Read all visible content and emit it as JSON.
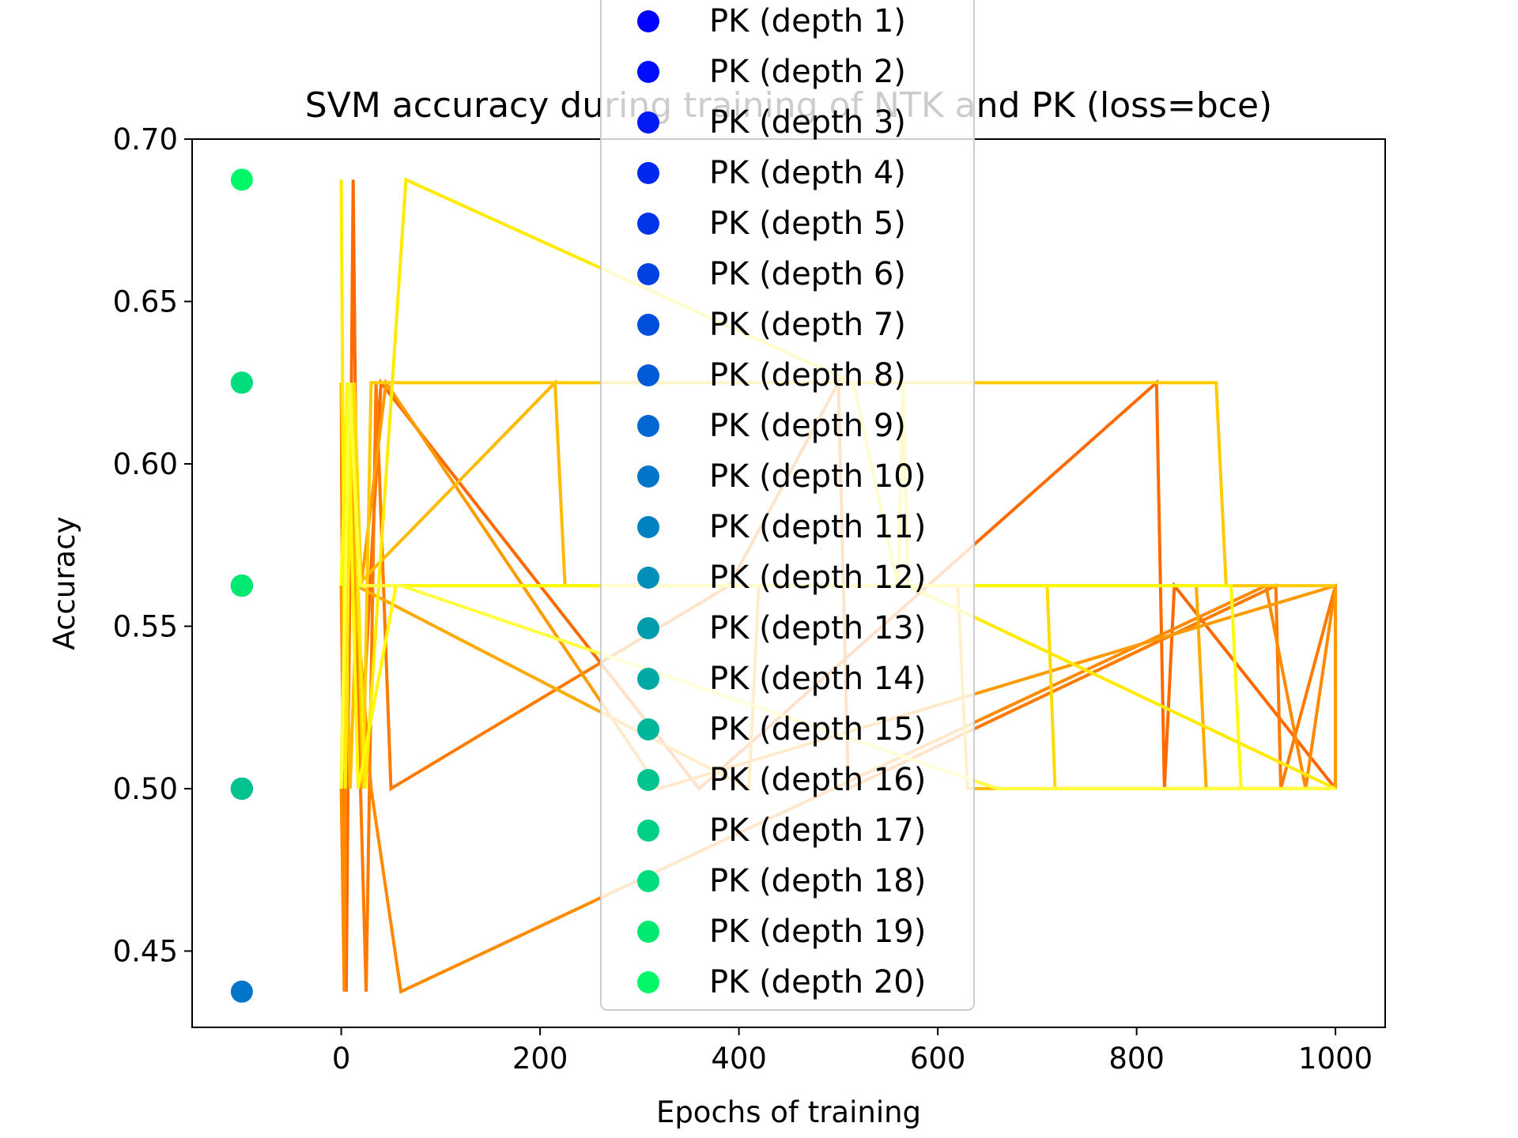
{
  "chart_data": {
    "type": "line",
    "title": "SVM accuracy during training of NTK and PK (loss=bce)",
    "xlabel": "Epochs of training",
    "ylabel": "Accuracy",
    "xlim": [
      -150,
      1050
    ],
    "ylim": [
      0.4265,
      0.7
    ],
    "xticks": [
      0,
      200,
      400,
      600,
      800,
      1000
    ],
    "xtick_labels": [
      "0",
      "200",
      "400",
      "600",
      "800",
      "1000"
    ],
    "yticks": [
      0.45,
      0.5,
      0.55,
      0.6,
      0.65,
      0.7
    ],
    "ytick_labels": [
      "0.45",
      "0.50",
      "0.55",
      "0.60",
      "0.65",
      "0.70"
    ],
    "grid": false,
    "legend": {
      "position": "top-center"
    },
    "pk_points": [
      {
        "name": "PK (depth 1)",
        "x": -100,
        "y": 0.5625,
        "color": "#0000ff"
      },
      {
        "name": "PK (depth 2)",
        "x": -100,
        "y": 0.5,
        "color": "#000dfa"
      },
      {
        "name": "PK (depth 3)",
        "x": -100,
        "y": 0.5625,
        "color": "#001af4"
      },
      {
        "name": "PK (depth 4)",
        "x": -100,
        "y": 0.5,
        "color": "#0027ee"
      },
      {
        "name": "PK (depth 5)",
        "x": -100,
        "y": 0.5625,
        "color": "#0034e8"
      },
      {
        "name": "PK (depth 6)",
        "x": -100,
        "y": 0.5,
        "color": "#0041e2"
      },
      {
        "name": "PK (depth 7)",
        "x": -100,
        "y": 0.5625,
        "color": "#004edc"
      },
      {
        "name": "PK (depth 8)",
        "x": -100,
        "y": 0.5,
        "color": "#005bd6"
      },
      {
        "name": "PK (depth 9)",
        "x": -100,
        "y": 0.5625,
        "color": "#0068d0"
      },
      {
        "name": "PK (depth 10)",
        "x": -100,
        "y": 0.4375,
        "color": "#0075ca"
      },
      {
        "name": "PK (depth 11)",
        "x": -100,
        "y": 0.5,
        "color": "#0082c2"
      },
      {
        "name": "PK (depth 12)",
        "x": -100,
        "y": 0.5625,
        "color": "#008fb8"
      },
      {
        "name": "PK (depth 13)",
        "x": -100,
        "y": 0.5,
        "color": "#009cae"
      },
      {
        "name": "PK (depth 14)",
        "x": -100,
        "y": 0.5625,
        "color": "#00a9a4"
      },
      {
        "name": "PK (depth 15)",
        "x": -100,
        "y": 0.625,
        "color": "#00b69a"
      },
      {
        "name": "PK (depth 16)",
        "x": -100,
        "y": 0.5,
        "color": "#00c390"
      },
      {
        "name": "PK (depth 17)",
        "x": -100,
        "y": 0.5625,
        "color": "#00d086"
      },
      {
        "name": "PK (depth 18)",
        "x": -100,
        "y": 0.625,
        "color": "#00dd7c"
      },
      {
        "name": "PK (depth 19)",
        "x": -100,
        "y": 0.5625,
        "color": "#00ea72"
      },
      {
        "name": "PK (depth 20)",
        "x": -100,
        "y": 0.6875,
        "color": "#00f768"
      }
    ],
    "ntk_lines": [
      {
        "color": "#ff6a00",
        "points": [
          [
            0,
            0.5625
          ],
          [
            5,
            0.4375
          ],
          [
            12,
            0.6875
          ],
          [
            18,
            0.5
          ],
          [
            40,
            0.625
          ],
          [
            360,
            0.5
          ],
          [
            820,
            0.625
          ],
          [
            828,
            0.5
          ],
          [
            838,
            0.5625
          ],
          [
            1000,
            0.5
          ]
        ]
      },
      {
        "color": "#ff7a00",
        "points": [
          [
            0,
            0.625
          ],
          [
            2,
            0.5
          ],
          [
            8,
            0.625
          ],
          [
            25,
            0.4375
          ],
          [
            35,
            0.625
          ],
          [
            50,
            0.5
          ],
          [
            390,
            0.5625
          ],
          [
            500,
            0.625
          ],
          [
            510,
            0.5
          ],
          [
            940,
            0.5625
          ],
          [
            945,
            0.5
          ],
          [
            1000,
            0.5625
          ]
        ]
      },
      {
        "color": "#ff8a00",
        "points": [
          [
            0,
            0.5
          ],
          [
            3,
            0.4375
          ],
          [
            6,
            0.625
          ],
          [
            14,
            0.5625
          ],
          [
            30,
            0.5
          ],
          [
            60,
            0.4375
          ],
          [
            930,
            0.5625
          ],
          [
            970,
            0.5
          ],
          [
            1000,
            0.5625
          ],
          [
            1000,
            0.5
          ]
        ]
      },
      {
        "color": "#ff9a00",
        "points": [
          [
            0,
            0.5625
          ],
          [
            4,
            0.5
          ],
          [
            10,
            0.625
          ],
          [
            20,
            0.5625
          ],
          [
            45,
            0.625
          ],
          [
            320,
            0.5
          ],
          [
            1000,
            0.5625
          ],
          [
            1000,
            0.5
          ]
        ]
      },
      {
        "color": "#ffaa00",
        "points": [
          [
            0,
            0.5
          ],
          [
            7,
            0.625
          ],
          [
            15,
            0.5625
          ],
          [
            410,
            0.5
          ],
          [
            420,
            0.5625
          ],
          [
            860,
            0.5625
          ],
          [
            870,
            0.5
          ],
          [
            1000,
            0.5
          ]
        ]
      },
      {
        "color": "#ffba00",
        "points": [
          [
            0,
            0.625
          ],
          [
            9,
            0.5
          ],
          [
            16,
            0.5625
          ],
          [
            215,
            0.625
          ],
          [
            225,
            0.5625
          ],
          [
            620,
            0.5625
          ],
          [
            630,
            0.5
          ],
          [
            1000,
            0.5
          ]
        ]
      },
      {
        "color": "#ffca00",
        "points": [
          [
            0,
            0.5625
          ],
          [
            11,
            0.625
          ],
          [
            22,
            0.5
          ],
          [
            30,
            0.625
          ],
          [
            880,
            0.625
          ],
          [
            890,
            0.5625
          ],
          [
            1000,
            0.5625
          ]
        ]
      },
      {
        "color": "#ffda00",
        "points": [
          [
            0,
            0.5
          ],
          [
            13,
            0.625
          ],
          [
            20,
            0.5625
          ],
          [
            710,
            0.5625
          ],
          [
            718,
            0.5
          ],
          [
            1000,
            0.5
          ]
        ]
      },
      {
        "color": "#ffea00",
        "points": [
          [
            0,
            0.6875
          ],
          [
            4,
            0.5
          ],
          [
            10,
            0.625
          ],
          [
            24,
            0.5
          ],
          [
            65,
            0.6875
          ],
          [
            515,
            0.625
          ],
          [
            560,
            0.5625
          ],
          [
            565,
            0.625
          ],
          [
            570,
            0.5625
          ],
          [
            1000,
            0.5
          ]
        ]
      },
      {
        "color": "#fffa00",
        "points": [
          [
            0,
            0.5625
          ],
          [
            6,
            0.625
          ],
          [
            17,
            0.5
          ],
          [
            55,
            0.5625
          ],
          [
            895,
            0.5625
          ],
          [
            905,
            0.5
          ],
          [
            1000,
            0.5
          ]
        ]
      },
      {
        "color": "#ffff40",
        "points": [
          [
            0,
            0.5
          ],
          [
            8,
            0.625
          ],
          [
            19,
            0.5625
          ],
          [
            60,
            0.5625
          ],
          [
            660,
            0.5
          ],
          [
            1000,
            0.5
          ]
        ]
      }
    ]
  }
}
